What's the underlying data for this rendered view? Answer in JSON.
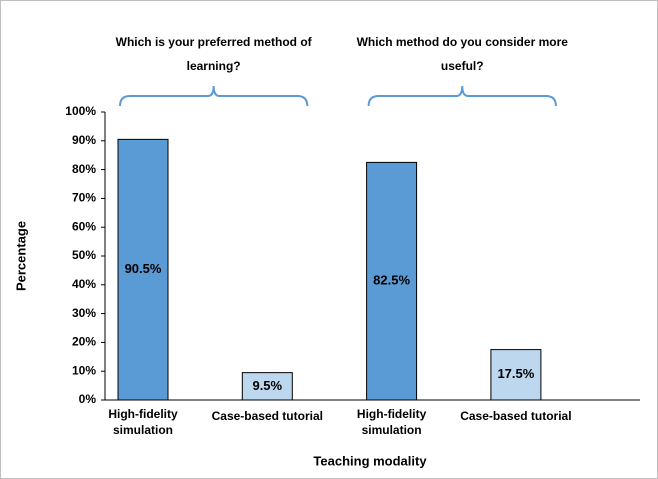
{
  "chart_data": {
    "type": "bar",
    "categories": [
      "High-fidelity simulation",
      "Case-based tutorial",
      "High-fidelity simulation",
      "Case-based tutorial"
    ],
    "values": [
      90.5,
      9.5,
      82.5,
      17.5
    ],
    "value_labels": [
      "90.5%",
      "9.5%",
      "82.5%",
      "17.5%"
    ],
    "colors": [
      "#5b9bd5",
      "#bdd7ee",
      "#5b9bd5",
      "#bdd7ee"
    ],
    "annotations": [
      "Which is your preferred method of learning?",
      "Which method do you consider more useful?"
    ],
    "xlabel": "Teaching modality",
    "ylabel": "Percentage",
    "ylim": [
      0,
      100
    ],
    "yticks": [
      {
        "value": 0,
        "label": "0%"
      },
      {
        "value": 10,
        "label": "10%"
      },
      {
        "value": 20,
        "label": "20%"
      },
      {
        "value": 30,
        "label": "30%"
      },
      {
        "value": 40,
        "label": "40%"
      },
      {
        "value": 50,
        "label": "50%"
      },
      {
        "value": 60,
        "label": "60%"
      },
      {
        "value": 70,
        "label": "70%"
      },
      {
        "value": 80,
        "label": "80%"
      },
      {
        "value": 90,
        "label": "90%"
      },
      {
        "value": 100,
        "label": "100%"
      }
    ],
    "grid": false
  }
}
